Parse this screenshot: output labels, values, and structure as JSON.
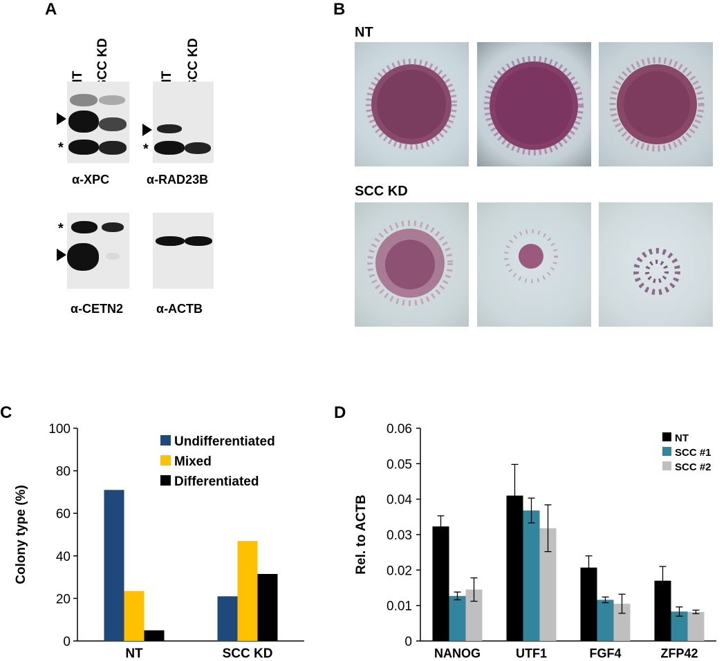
{
  "panels": {
    "a": {
      "letter": "A",
      "lanes": [
        "NT",
        "SCC KD"
      ],
      "blots": [
        {
          "title": "α-XPC",
          "nt_band": "strong",
          "kd_band": "faint",
          "asterisk": "*"
        },
        {
          "title": "α-RAD23B",
          "nt_band": "present",
          "kd_band": "absent",
          "asterisk": "*"
        },
        {
          "title": "α-CETN2",
          "nt_band": "strong",
          "kd_band": "absent",
          "asterisk": "*"
        },
        {
          "title": "α-ACTB",
          "nt_band": "equal",
          "kd_band": "equal"
        }
      ]
    },
    "b": {
      "letter": "B",
      "groups": [
        "NT",
        "SCC KD"
      ]
    },
    "c": {
      "letter": "C"
    },
    "d": {
      "letter": "D"
    }
  },
  "chart_data": [
    {
      "type": "bar",
      "panel": "C",
      "categories": [
        "NT",
        "SCC KD"
      ],
      "series": [
        {
          "name": "Undifferentiated",
          "color": "#1f497d",
          "values": [
            71,
            21
          ]
        },
        {
          "name": "Mixed",
          "color": "#ffc000",
          "values": [
            23.5,
            47
          ]
        },
        {
          "name": "Differentiated",
          "color": "#000000",
          "values": [
            5,
            31.5
          ]
        }
      ],
      "ylabel": "Colony type (%)",
      "ylim": [
        0,
        100
      ],
      "yticks": [
        0,
        20,
        40,
        60,
        80,
        100
      ],
      "legend": "top-right",
      "grid": false
    },
    {
      "type": "bar",
      "panel": "D",
      "categories": [
        "NANOG",
        "UTF1",
        "FGF4",
        "ZFP42"
      ],
      "series": [
        {
          "name": "NT",
          "color": "#000000",
          "values": [
            0.0323,
            0.041,
            0.0207,
            0.017
          ],
          "errors": [
            0.003,
            0.0088,
            0.0033,
            0.004
          ]
        },
        {
          "name": "SCC #1",
          "color": "#31859c",
          "values": [
            0.0127,
            0.0368,
            0.0116,
            0.0083
          ],
          "errors": [
            0.0011,
            0.0035,
            0.0008,
            0.0013
          ]
        },
        {
          "name": "SCC #2",
          "color": "#bfbfbf",
          "values": [
            0.0145,
            0.0318,
            0.0105,
            0.0082
          ],
          "errors": [
            0.0033,
            0.0066,
            0.0027,
            0.0005
          ]
        }
      ],
      "ylabel": "Rel. to ACTB",
      "ylim": [
        0,
        0.06
      ],
      "yticks": [
        "0",
        "0.01",
        "0.02",
        "0.03",
        "0.04",
        "0.05",
        "0.06"
      ],
      "legend": "top-right",
      "grid": false
    }
  ]
}
